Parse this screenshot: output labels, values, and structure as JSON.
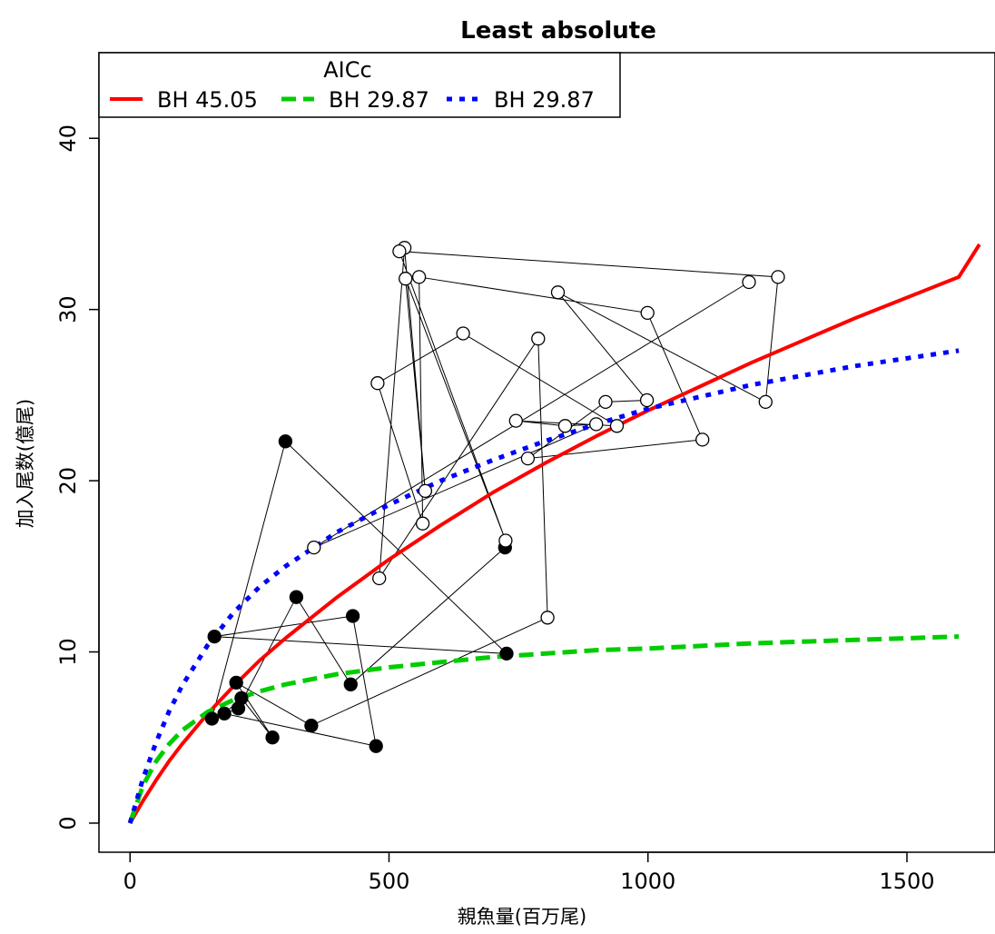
{
  "chart_data": {
    "type": "scatter",
    "title": "Least absolute",
    "xlabel": "親魚量(百万尾)",
    "ylabel": "加入尾数(億尾)",
    "xlim": [
      -60,
      1670
    ],
    "ylim": [
      -1.7,
      45.0
    ],
    "x_ticks": [
      0,
      500,
      1000,
      1500
    ],
    "y_ticks": [
      0,
      10,
      20,
      30,
      40
    ],
    "grid": false,
    "legend": {
      "position": "top-left",
      "title": "AICc",
      "entries": [
        {
          "label": "BH 45.05",
          "color": "#ff0000",
          "style": "solid"
        },
        {
          "label": "BH 29.87",
          "color": "#00cc00",
          "style": "dashed"
        },
        {
          "label": "BH 29.87",
          "color": "#0000ff",
          "style": "dotted"
        }
      ]
    },
    "observed_path": {
      "color": "#000000",
      "points": [
        {
          "x": 724,
          "y": 16.1,
          "filled": true
        },
        {
          "x": 426,
          "y": 8.1,
          "filled": true
        },
        {
          "x": 321,
          "y": 13.2,
          "filled": true
        },
        {
          "x": 209,
          "y": 6.7,
          "filled": true
        },
        {
          "x": 158,
          "y": 6.1,
          "filled": true
        },
        {
          "x": 300,
          "y": 22.3,
          "filled": true
        },
        {
          "x": 727,
          "y": 9.9,
          "filled": true
        },
        {
          "x": 163,
          "y": 10.9,
          "filled": true
        },
        {
          "x": 430,
          "y": 12.1,
          "filled": true
        },
        {
          "x": 475,
          "y": 4.5,
          "filled": true
        },
        {
          "x": 182,
          "y": 6.4,
          "filled": true
        },
        {
          "x": 215,
          "y": 7.3,
          "filled": true
        },
        {
          "x": 275,
          "y": 5.0,
          "filled": true
        },
        {
          "x": 205,
          "y": 8.2,
          "filled": true
        },
        {
          "x": 350,
          "y": 5.7,
          "filled": true
        },
        {
          "x": 806,
          "y": 12.0,
          "filled": false
        },
        {
          "x": 788,
          "y": 28.3,
          "filled": false
        },
        {
          "x": 481,
          "y": 14.3,
          "filled": false
        },
        {
          "x": 530,
          "y": 33.6,
          "filled": false
        },
        {
          "x": 570,
          "y": 19.4,
          "filled": false
        },
        {
          "x": 532,
          "y": 31.8,
          "filled": false
        },
        {
          "x": 725,
          "y": 16.5,
          "filled": false
        },
        {
          "x": 520,
          "y": 33.4,
          "filled": false
        },
        {
          "x": 1251,
          "y": 31.9,
          "filled": false
        },
        {
          "x": 1227,
          "y": 24.6,
          "filled": false
        },
        {
          "x": 826,
          "y": 31.0,
          "filled": false
        },
        {
          "x": 998,
          "y": 24.7,
          "filled": false
        },
        {
          "x": 918,
          "y": 24.6,
          "filled": false
        },
        {
          "x": 768,
          "y": 21.3,
          "filled": false
        },
        {
          "x": 1105,
          "y": 22.4,
          "filled": false
        },
        {
          "x": 999,
          "y": 29.8,
          "filled": false
        },
        {
          "x": 558,
          "y": 31.9,
          "filled": false
        },
        {
          "x": 565,
          "y": 17.5,
          "filled": false
        },
        {
          "x": 478,
          "y": 25.7,
          "filled": false
        },
        {
          "x": 643,
          "y": 28.6,
          "filled": false
        },
        {
          "x": 940,
          "y": 23.2,
          "filled": false
        },
        {
          "x": 745,
          "y": 23.5,
          "filled": false
        },
        {
          "x": 840,
          "y": 23.2,
          "filled": false
        },
        {
          "x": 900,
          "y": 23.3,
          "filled": false
        },
        {
          "x": 355,
          "y": 16.1,
          "filled": false
        },
        {
          "x": 1195,
          "y": 31.6,
          "filled": false
        }
      ]
    },
    "series": [
      {
        "label": "BH 45.05",
        "color": "#ff0000",
        "style": "solid",
        "x": [
          0,
          25,
          50,
          75,
          100,
          150,
          200,
          250,
          300,
          400,
          500,
          600,
          700,
          800,
          900,
          1000,
          1100,
          1200,
          1300,
          1400,
          1500,
          1600,
          1640
        ],
        "y": [
          0,
          1.3,
          2.5,
          3.6,
          4.6,
          6.4,
          8.0,
          9.5,
          10.8,
          13.2,
          15.4,
          17.4,
          19.3,
          21.0,
          22.6,
          24.1,
          25.5,
          26.9,
          28.2,
          29.5,
          30.7,
          31.9,
          33.8
        ]
      },
      {
        "label": "BH 29.87",
        "color": "#00cc00",
        "style": "dashed",
        "x": [
          0,
          25,
          50,
          75,
          100,
          150,
          200,
          250,
          300,
          400,
          500,
          600,
          700,
          800,
          900,
          1000,
          1200,
          1400,
          1600
        ],
        "y": [
          0,
          2.2,
          3.6,
          4.6,
          5.4,
          6.5,
          7.2,
          7.7,
          8.1,
          8.7,
          9.1,
          9.4,
          9.7,
          9.9,
          10.1,
          10.2,
          10.5,
          10.7,
          10.9
        ]
      },
      {
        "label": "BH 29.87",
        "color": "#0000ff",
        "style": "dotted",
        "x": [
          0,
          25,
          50,
          75,
          100,
          150,
          200,
          250,
          300,
          400,
          500,
          600,
          700,
          800,
          900,
          1000,
          1200,
          1400,
          1600
        ],
        "y": [
          0,
          2.6,
          4.7,
          6.5,
          8.0,
          10.4,
          12.3,
          13.8,
          15.0,
          17.0,
          18.6,
          20.0,
          21.2,
          22.3,
          23.3,
          24.2,
          25.6,
          26.7,
          27.6
        ]
      }
    ]
  }
}
